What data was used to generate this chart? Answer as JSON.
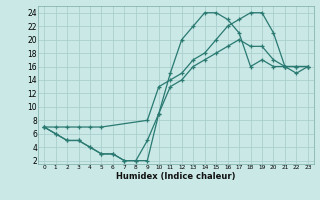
{
  "xlabel": "Humidex (Indice chaleur)",
  "background_color": "#c9e8e6",
  "grid_color": "#aad0cc",
  "line_color": "#2a7a72",
  "xlim": [
    -0.5,
    23.5
  ],
  "ylim": [
    1.5,
    25
  ],
  "xticks": [
    0,
    1,
    2,
    3,
    4,
    5,
    6,
    7,
    8,
    9,
    10,
    11,
    12,
    13,
    14,
    15,
    16,
    17,
    18,
    19,
    20,
    21,
    22,
    23
  ],
  "yticks": [
    2,
    4,
    6,
    8,
    10,
    12,
    14,
    16,
    18,
    20,
    22,
    24
  ],
  "curve1_x": [
    0,
    1,
    2,
    3,
    4,
    5,
    6,
    7,
    8,
    9,
    10,
    11,
    12,
    13,
    14,
    15,
    16,
    17,
    18,
    19,
    20,
    21,
    22,
    23
  ],
  "curve1_y": [
    7,
    6,
    5,
    5,
    4,
    3,
    3,
    2,
    2,
    2,
    9,
    15,
    20,
    22,
    24,
    24,
    23,
    21,
    16,
    17,
    16,
    16,
    15,
    16
  ],
  "curve2_x": [
    0,
    1,
    2,
    3,
    4,
    5,
    6,
    7,
    8,
    9,
    10,
    11,
    12,
    13,
    14,
    15,
    16,
    17,
    18,
    19,
    20,
    21,
    22,
    23
  ],
  "curve2_y": [
    7,
    6,
    5,
    5,
    4,
    3,
    3,
    2,
    2,
    5,
    9,
    13,
    14,
    16,
    17,
    18,
    19,
    20,
    19,
    19,
    17,
    16,
    16,
    16
  ],
  "curve3_x": [
    0,
    1,
    2,
    3,
    4,
    5,
    9,
    10,
    11,
    12,
    13,
    14,
    15,
    16,
    17,
    18,
    19,
    20,
    21,
    22,
    23
  ],
  "curve3_y": [
    7,
    7,
    7,
    7,
    7,
    7,
    8,
    13,
    14,
    15,
    17,
    18,
    20,
    22,
    23,
    24,
    24,
    21,
    16,
    16,
    16
  ],
  "marker": "+",
  "markersize": 3.5,
  "linewidth": 0.9
}
